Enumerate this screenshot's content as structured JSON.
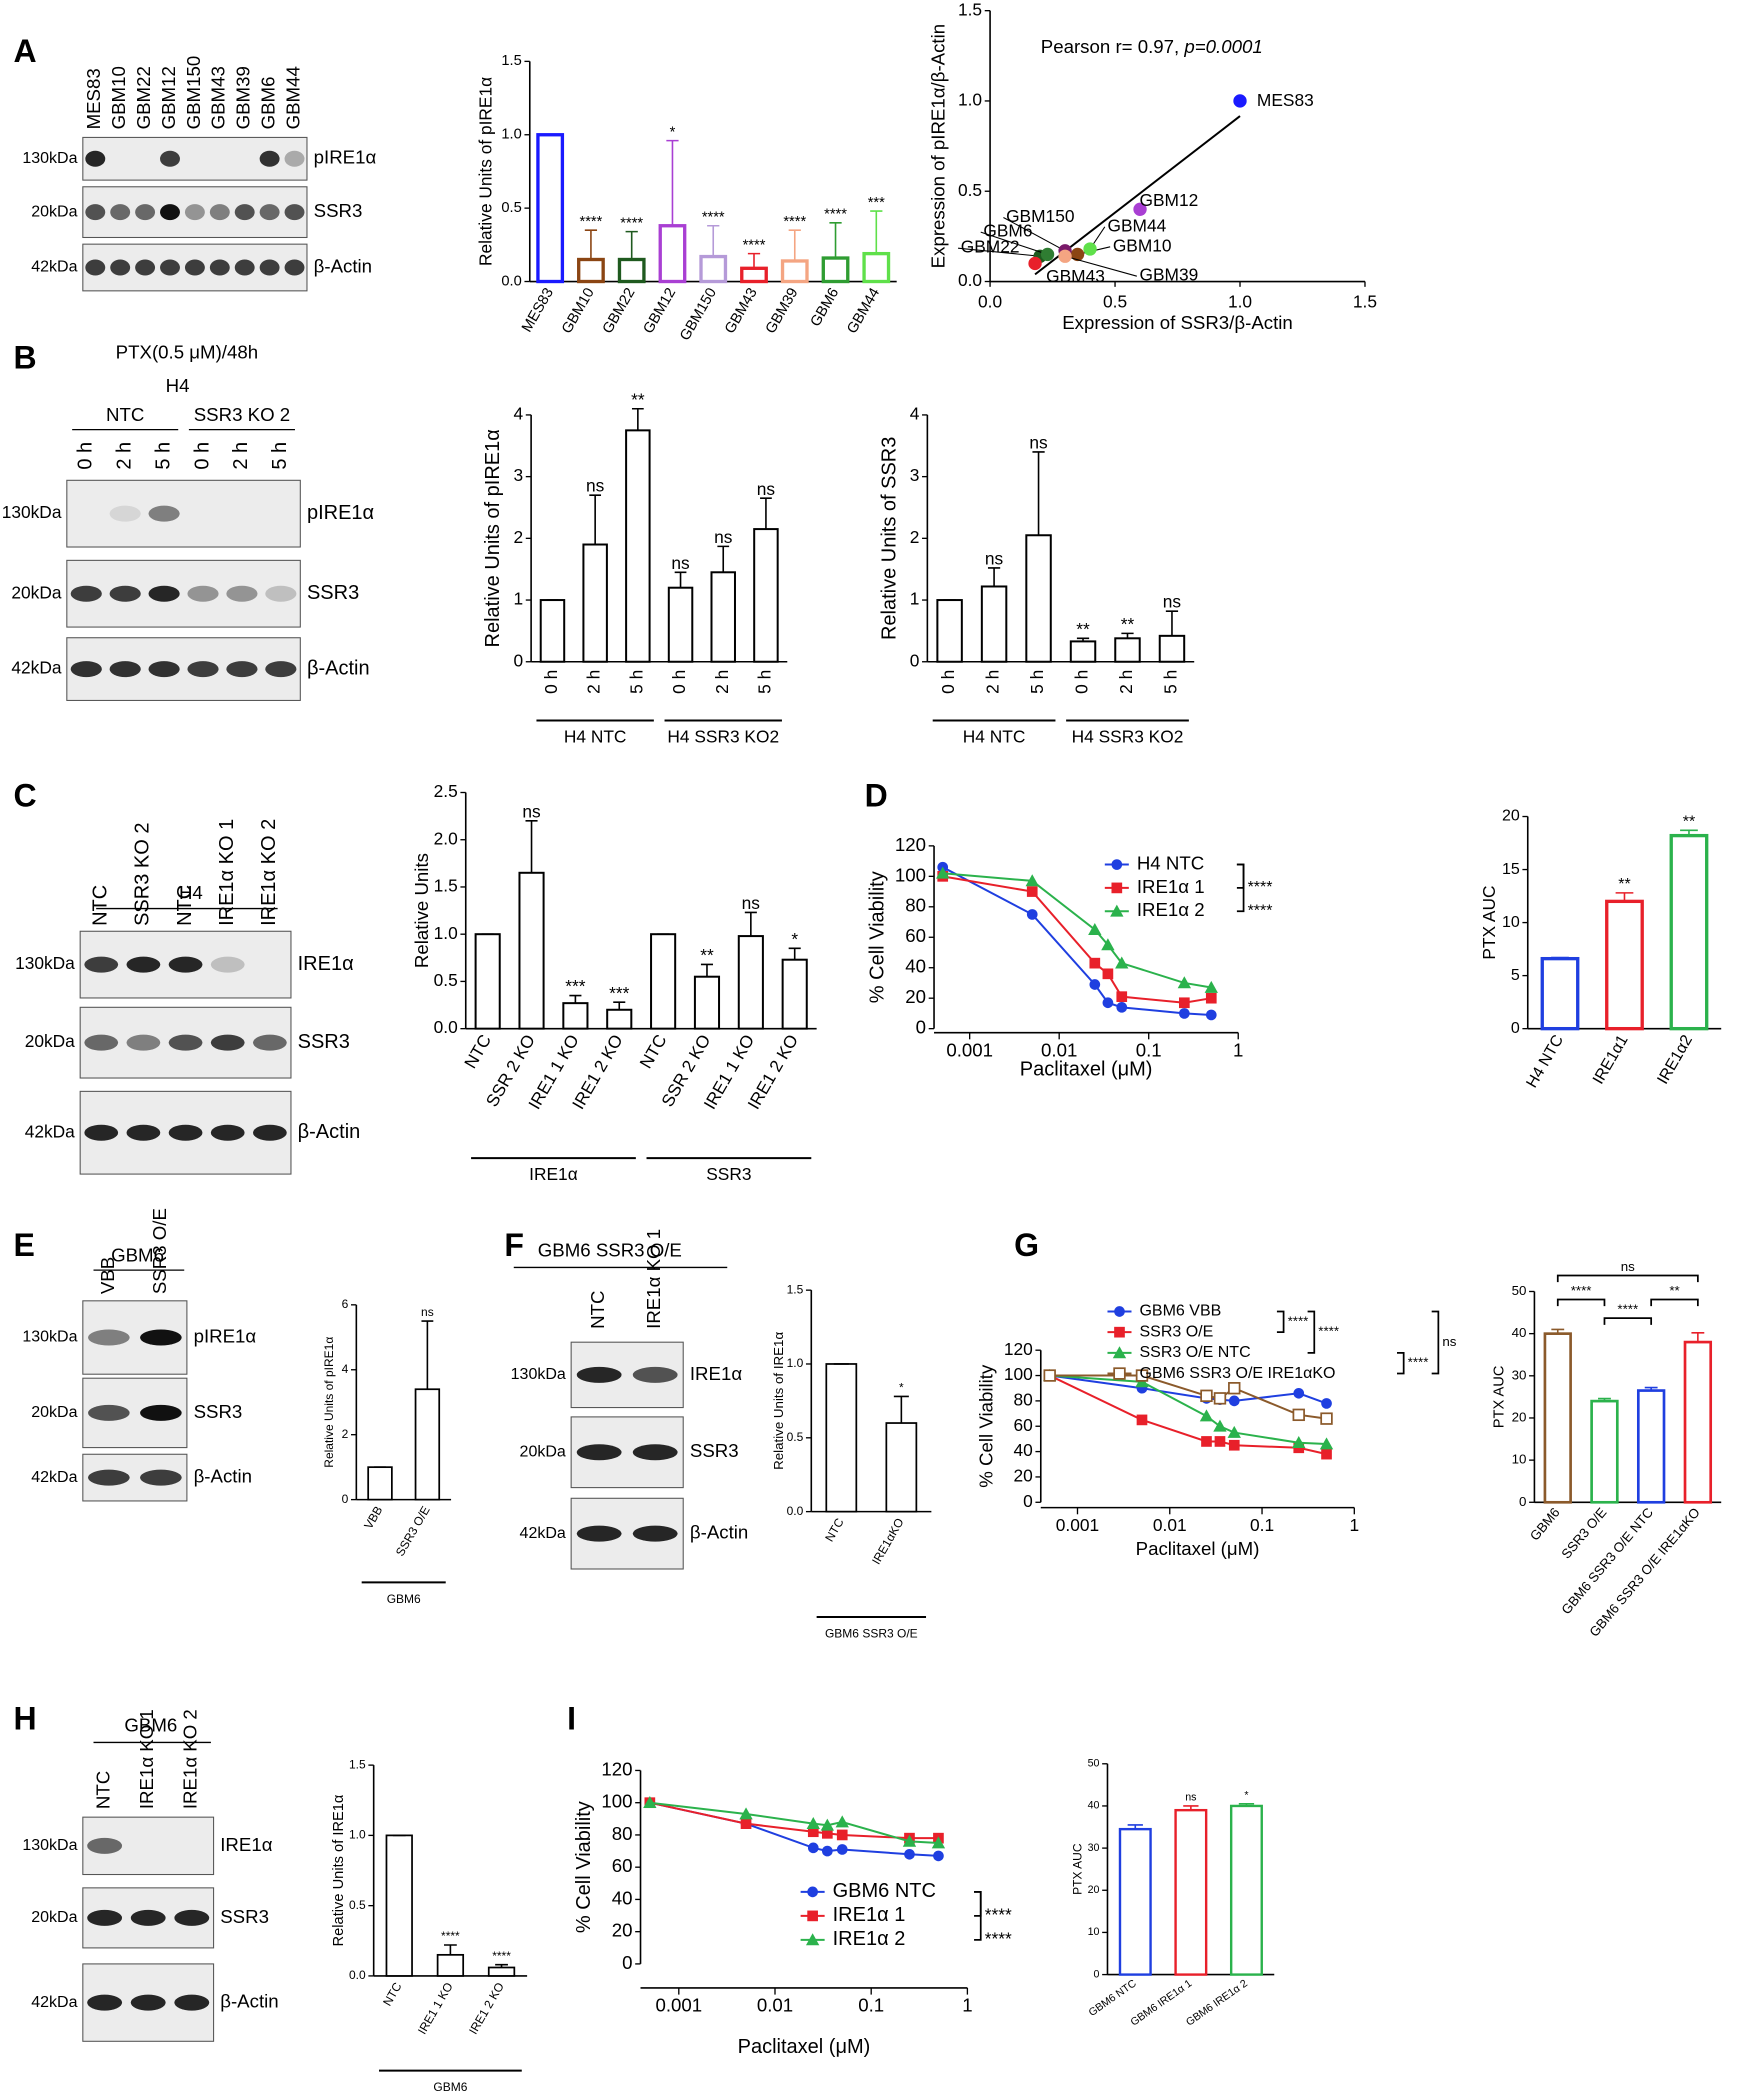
{
  "panels": [
    "A",
    "B",
    "C",
    "D",
    "E",
    "F",
    "G",
    "H",
    "I"
  ],
  "blots": [
    {
      "lanes": [
        "MES83",
        "GBM10",
        "GBM22",
        "GBM12",
        "GBM150",
        "GBM43",
        "GBM39",
        "GBM6",
        "GBM44"
      ],
      "lane_colors": [
        "#1a1aff",
        "#b5401a",
        "#1f5a1f",
        "#a93fd3",
        "#6a1a9a",
        "#e8202a",
        "#f4a582",
        "#2f7d32",
        "#7cdc3c"
      ],
      "rows": [
        {
          "kda": "130kDa",
          "protein": "pIRE1α"
        },
        {
          "kda": "20kDa",
          "protein": "SSR3"
        },
        {
          "kda": "42kDa",
          "protein": "β-Actin"
        }
      ]
    },
    {
      "treatment": "PTX(0.5 μM)/48h",
      "header": "H4",
      "groups": [
        "NTC",
        "SSR3 KO 2"
      ],
      "lanes": [
        "0 h",
        "2 h",
        "5 h",
        "0 h",
        "2 h",
        "5 h"
      ],
      "rows": [
        {
          "kda": "130kDa",
          "protein": "pIRE1α"
        },
        {
          "kda": "20kDa",
          "protein": "SSR3"
        },
        {
          "kda": "42kDa",
          "protein": "β-Actin"
        }
      ]
    },
    {
      "header": "H4",
      "lanes": [
        "NTC",
        "SSR3 KO 2",
        "NTC",
        "IRE1α KO 1",
        "IRE1α KO 2"
      ],
      "rows": [
        {
          "kda": "130kDa",
          "protein": "IRE1α"
        },
        {
          "kda": "20kDa",
          "protein": "SSR3"
        },
        {
          "kda": "42kDa",
          "protein": "β-Actin"
        }
      ]
    },
    {
      "header": "GBM6",
      "lanes": [
        "VBB",
        "SSR3 O/E"
      ],
      "rows": [
        {
          "kda": "130kDa",
          "protein": "pIRE1α"
        },
        {
          "kda": "20kDa",
          "protein": "SSR3"
        },
        {
          "kda": "42kDa",
          "protein": "β-Actin"
        }
      ]
    },
    {
      "header": "GBM6 SSR3 O/E",
      "lanes": [
        "NTC",
        "IRE1α KO 1"
      ],
      "rows": [
        {
          "kda": "130kDa",
          "protein": "IRE1α"
        },
        {
          "kda": "20kDa",
          "protein": "SSR3"
        },
        {
          "kda": "42kDa",
          "protein": "β-Actin"
        }
      ]
    },
    {
      "header": "GBM6",
      "lanes": [
        "NTC",
        "IRE1α KO 1",
        "IRE1α KO 2"
      ],
      "rows": [
        {
          "kda": "130kDa",
          "protein": "IRE1α"
        },
        {
          "kda": "20kDa",
          "protein": "SSR3"
        },
        {
          "kda": "42kDa",
          "protein": "β-Actin"
        }
      ]
    }
  ],
  "chart_data": [
    {
      "type": "bar",
      "ylabel": "Relative Units of pIRE1α",
      "categories": [
        "MES83",
        "GBM10",
        "GBM22",
        "GBM12",
        "GBM150",
        "GBM43",
        "GBM39",
        "GBM6",
        "GBM44"
      ],
      "values": [
        1,
        0.15,
        0.15,
        0.38,
        0.17,
        0.09,
        0.14,
        0.16,
        0.19
      ],
      "errors": [
        0,
        0.2,
        0.19,
        0.58,
        0.21,
        0.1,
        0.21,
        0.24,
        0.29
      ],
      "significance": [
        null,
        "****",
        "****",
        "*",
        "****",
        "****",
        "****",
        "****",
        "***"
      ],
      "colors": [
        "#1a1aff",
        "#8b4513",
        "#1f5a1f",
        "#a93fd3",
        "#b59ad8",
        "#e8202a",
        "#f4a582",
        "#2f9d32",
        "#5fe04a"
      ],
      "ylim": [
        0,
        1.5
      ],
      "yticks": [
        {
          "value": 0,
          "label": "0.0"
        },
        {
          "value": 0.5,
          "label": "0.5"
        },
        {
          "value": 1,
          "label": "1.0"
        },
        {
          "value": 1.5,
          "label": "1.5"
        }
      ]
    },
    {
      "type": "scatter",
      "annotation": [
        "Pearson r= 0.97, ",
        "p=0.0001"
      ],
      "xlabel": "Expression of SSR3/β-Actin",
      "ylabel": "Expression of pIRE1α/β-Actin",
      "labels": [
        "MES83",
        "GBM10",
        "GBM22",
        "GBM12",
        "GBM150",
        "GBM43",
        "GBM39",
        "GBM6",
        "GBM44"
      ],
      "x": [
        1.0,
        0.35,
        0.2,
        0.6,
        0.3,
        0.18,
        0.3,
        0.23,
        0.4
      ],
      "values": [
        1.0,
        0.15,
        0.14,
        0.4,
        0.17,
        0.1,
        0.14,
        0.15,
        0.18
      ],
      "colors": [
        "#1a1aff",
        "#8b4513",
        "#1f5a1f",
        "#a93fd3",
        "#7a1a6a",
        "#e8202a",
        "#f4a582",
        "#2f7d32",
        "#5fe04a"
      ],
      "xlim": [
        0,
        1.5
      ],
      "ylim": [
        0,
        1.5
      ],
      "xticks": [
        {
          "value": 0,
          "label": "0.0"
        },
        {
          "value": 0.5,
          "label": "0.5"
        },
        {
          "value": 1,
          "label": "1.0"
        },
        {
          "value": 1.5,
          "label": "1.5"
        }
      ],
      "yticks": [
        {
          "value": 0,
          "label": "0.0"
        },
        {
          "value": 0.5,
          "label": "0.5"
        },
        {
          "value": 1,
          "label": "1.0"
        },
        {
          "value": 1.5,
          "label": "1.5"
        }
      ]
    },
    {
      "type": "bar",
      "ylabel": "Relative Units of pIRE1α",
      "categories": [
        "0 h",
        "2 h",
        "5 h",
        "0 h",
        "2 h",
        "5 h"
      ],
      "groups": [
        "H4 NTC",
        "H4 SSR3 KO2"
      ],
      "values": [
        1,
        1.9,
        3.75,
        1.2,
        1.45,
        2.15
      ],
      "errors": [
        0,
        0.8,
        0.35,
        0.25,
        0.42,
        0.5
      ],
      "significance": [
        null,
        "ns",
        "**",
        "ns",
        "ns",
        "ns"
      ],
      "color": "#000000",
      "ylim": [
        0,
        4
      ],
      "yticks": [
        0,
        1,
        2,
        3,
        4
      ]
    },
    {
      "type": "bar",
      "ylabel": "Relative Units of SSR3",
      "categories": [
        "0 h",
        "2 h",
        "5 h",
        "0 h",
        "2 h",
        "5 h"
      ],
      "groups": [
        "H4 NTC",
        "H4 SSR3 KO2"
      ],
      "values": [
        1,
        1.22,
        2.05,
        0.33,
        0.38,
        0.42
      ],
      "errors": [
        0,
        0.3,
        1.35,
        0.05,
        0.08,
        0.4
      ],
      "significance": [
        null,
        "ns",
        "ns",
        "**",
        "**",
        "ns"
      ],
      "color": "#000000",
      "ylim": [
        0,
        4
      ],
      "yticks": [
        0,
        1,
        2,
        3,
        4
      ]
    },
    {
      "type": "bar",
      "ylabel": "Relative Units",
      "categories": [
        "NTC",
        "SSR 2 KO",
        "IRE1 1 KO",
        "IRE1 2 KO",
        "NTC",
        "SSR 2 KO",
        "IRE1 1 KO",
        "IRE1 2 KO"
      ],
      "groups": [
        "IRE1α",
        "SSR3"
      ],
      "values": [
        1,
        1.65,
        0.27,
        0.2,
        1,
        0.55,
        0.98,
        0.73
      ],
      "errors": [
        0,
        0.55,
        0.08,
        0.08,
        0,
        0.13,
        0.25,
        0.12
      ],
      "significance": [
        null,
        "ns",
        "***",
        "***",
        null,
        "**",
        "ns",
        "*"
      ],
      "color": "#000000",
      "ylim": [
        0,
        2.5
      ],
      "yticks": [
        {
          "value": 0,
          "label": "0.0"
        },
        {
          "value": 0.5,
          "label": "0.5"
        },
        {
          "value": 1,
          "label": "1.0"
        },
        {
          "value": 1.5,
          "label": "1.5"
        },
        {
          "value": 2,
          "label": "2.0"
        },
        {
          "value": 2.5,
          "label": "2.5"
        }
      ]
    },
    {
      "type": "line",
      "xscale": "log",
      "xlabel": "Paclitaxel (μM)",
      "ylabel": "% Cell Viability",
      "x": [
        0.0005,
        0.005,
        0.025,
        0.035,
        0.05,
        0.25,
        0.5
      ],
      "series": [
        {
          "name": "H4 NTC",
          "color": "#1f3fe0",
          "marker": "circle",
          "values": [
            106,
            75,
            29,
            17,
            14,
            10,
            9
          ]
        },
        {
          "name": "IRE1α 1",
          "color": "#e8202a",
          "marker": "square",
          "values": [
            100,
            90,
            43,
            36,
            21,
            17,
            20
          ]
        },
        {
          "name": "IRE1α 2",
          "color": "#2bb24c",
          "marker": "triangle",
          "values": [
            102,
            97,
            65,
            55,
            43,
            30,
            27
          ]
        }
      ],
      "comparisons": [
        "****",
        "****"
      ],
      "xlim": [
        0.0004,
        1
      ],
      "xticks": [
        0.001,
        0.01,
        0.1,
        1
      ],
      "ylim": [
        0,
        120
      ],
      "yticks": [
        0,
        20,
        40,
        60,
        80,
        100,
        120
      ]
    },
    {
      "type": "bar",
      "ylabel": "PTX AUC",
      "categories": [
        "H4 NTC",
        "IRE1α1",
        "IRE1α2"
      ],
      "values": [
        6.6,
        12,
        18.2
      ],
      "errors": [
        0.1,
        0.8,
        0.5
      ],
      "significance": [
        null,
        "**",
        "**"
      ],
      "colors": [
        "#1f3fe0",
        "#e8202a",
        "#2bb24c"
      ],
      "ylim": [
        0,
        20
      ],
      "yticks": [
        0,
        5,
        10,
        15,
        20
      ]
    },
    {
      "type": "bar",
      "ylabel": "Relative Units of pIRE1α",
      "categories": [
        "VBB",
        "SSR3 O/E"
      ],
      "groups": [
        "GBM6"
      ],
      "values": [
        1,
        3.4
      ],
      "errors": [
        0,
        2.1
      ],
      "significance": [
        null,
        "ns"
      ],
      "color": "#000000",
      "ylim": [
        0,
        6
      ],
      "yticks": [
        0,
        2,
        4,
        6
      ]
    },
    {
      "type": "bar",
      "ylabel": "Relative Units of IRE1α",
      "categories": [
        "NTC",
        "IRE1αKO"
      ],
      "groups": [
        "GBM6 SSR3 O/E"
      ],
      "values": [
        1,
        0.6
      ],
      "errors": [
        0,
        0.18
      ],
      "significance": [
        null,
        "*"
      ],
      "color": "#000000",
      "ylim": [
        0,
        1.5
      ],
      "yticks": [
        {
          "value": 0,
          "label": "0.0"
        },
        {
          "value": 0.5,
          "label": "0.5"
        },
        {
          "value": 1,
          "label": "1.0"
        },
        {
          "value": 1.5,
          "label": "1.5"
        }
      ]
    },
    {
      "type": "line",
      "xscale": "log",
      "xlabel": "Paclitaxel (μM)",
      "ylabel": "% Cell Viability",
      "x": [
        0.0005,
        0.005,
        0.025,
        0.035,
        0.05,
        0.25,
        0.5
      ],
      "series": [
        {
          "name": "GBM6 VBB",
          "color": "#1f3fe0",
          "marker": "circle",
          "values": [
            100,
            90,
            82,
            81,
            80,
            86,
            78
          ]
        },
        {
          "name": "SSR3 O/E",
          "color": "#e8202a",
          "marker": "square",
          "values": [
            100,
            65,
            48,
            48,
            45,
            43,
            38
          ]
        },
        {
          "name": "SSR3 O/E NTC",
          "color": "#2bb24c",
          "marker": "triangle",
          "values": [
            100,
            95,
            68,
            60,
            55,
            47,
            46
          ]
        },
        {
          "name": "GBM6 SSR3 O/E IRE1αKO",
          "color": "#8b5a2b",
          "marker": "square-open",
          "values": [
            100,
            100,
            84,
            82,
            90,
            69,
            66
          ]
        }
      ],
      "comparisons": [
        "****",
        "****",
        "****",
        "ns"
      ],
      "xlim": [
        0.0004,
        1
      ],
      "xticks": [
        0.001,
        0.01,
        0.1,
        1
      ],
      "ylim": [
        0,
        120
      ],
      "yticks": [
        0,
        20,
        40,
        60,
        80,
        100,
        120
      ]
    },
    {
      "type": "bar",
      "ylabel": "PTX AUC",
      "categories": [
        "GBM6",
        "SSR3 O/E",
        "GBM6 SSR3 O/E NTC",
        "GBM6 SSR3 O/E IRE1αKO"
      ],
      "values": [
        40,
        24,
        26.5,
        38
      ],
      "errors": [
        1,
        0.6,
        0.7,
        2.2
      ],
      "colors": [
        "#8b5a2b",
        "#2bb24c",
        "#1f3fe0",
        "#e8202a"
      ],
      "comparisons": [
        "ns",
        "****",
        "****",
        "**"
      ],
      "ylim": [
        0,
        50
      ],
      "yticks": [
        0,
        10,
        20,
        30,
        40,
        50
      ]
    },
    {
      "type": "bar",
      "ylabel": "Relative Units of IRE1α",
      "categories": [
        "NTC",
        "IRE1 1 KO",
        "IRE1 2 KO"
      ],
      "groups": [
        "GBM6"
      ],
      "values": [
        1,
        0.15,
        0.06
      ],
      "errors": [
        0,
        0.07,
        0.02
      ],
      "significance": [
        null,
        "****",
        "****"
      ],
      "color": "#000000",
      "ylim": [
        0,
        1.5
      ],
      "yticks": [
        {
          "value": 0,
          "label": "0.0"
        },
        {
          "value": 0.5,
          "label": "0.5"
        },
        {
          "value": 1,
          "label": "1.0"
        },
        {
          "value": 1.5,
          "label": "1.5"
        }
      ]
    },
    {
      "type": "line",
      "xscale": "log",
      "xlabel": "Paclitaxel (μM)",
      "ylabel": "% Cell Viability",
      "x": [
        0.0005,
        0.005,
        0.025,
        0.035,
        0.05,
        0.25,
        0.5
      ],
      "series": [
        {
          "name": "GBM6 NTC",
          "color": "#1f3fe0",
          "marker": "circle",
          "values": [
            100,
            87,
            72,
            70,
            71,
            68,
            67
          ]
        },
        {
          "name": "IRE1α 1",
          "color": "#e8202a",
          "marker": "square",
          "values": [
            100,
            87,
            82,
            81,
            80,
            78,
            78
          ]
        },
        {
          "name": "IRE1α 2",
          "color": "#2bb24c",
          "marker": "triangle",
          "values": [
            100,
            93,
            87,
            86,
            88,
            76,
            75
          ]
        }
      ],
      "comparisons": [
        "****",
        "****"
      ],
      "xlim": [
        0.0004,
        1
      ],
      "xticks": [
        0.001,
        0.01,
        0.1,
        1
      ],
      "ylim": [
        0,
        120
      ],
      "yticks": [
        0,
        20,
        40,
        60,
        80,
        100,
        120
      ]
    },
    {
      "type": "bar",
      "ylabel": "PTX AUC",
      "categories": [
        "GBM6 NTC",
        "GBM6 IRE1α 1",
        "GBM6 IRE1α 2"
      ],
      "values": [
        34.5,
        39,
        40
      ],
      "errors": [
        1,
        1,
        0.5
      ],
      "significance": [
        null,
        "ns",
        "*"
      ],
      "colors": [
        "#1f3fe0",
        "#e8202a",
        "#2bb24c"
      ],
      "ylim": [
        0,
        50
      ],
      "yticks": [
        0,
        10,
        20,
        30,
        40,
        50
      ]
    }
  ]
}
